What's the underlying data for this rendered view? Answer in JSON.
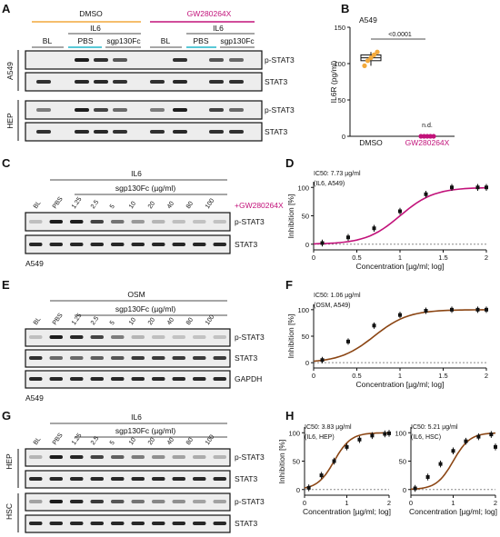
{
  "panels": {
    "A": {
      "letter": "A",
      "treat_dmso": "DMSO",
      "treat_gw": "GW280264X",
      "il6": "IL6",
      "lanes": [
        "BL",
        "PBS",
        "sgp130Fc",
        "BL",
        "PBS",
        "sgp130Fc"
      ],
      "cell_a549": "A549",
      "cell_hep": "HEP",
      "rows": [
        "p-STAT3",
        "STAT3",
        "p-STAT3",
        "STAT3"
      ]
    },
    "B": {
      "letter": "B",
      "cell": "A549",
      "pvalue": "<0.0001",
      "nd": "n.d.",
      "ylabel": "IL6R (pg/ml)",
      "yticks": [
        "0",
        "50",
        "100",
        "150"
      ],
      "xcats": [
        "DMSO",
        "GW280264X"
      ],
      "colors": {
        "dmso": "#f2a93b",
        "gw": "#c2127a"
      }
    },
    "C": {
      "letter": "C",
      "il6": "IL6",
      "sgp": "sgp130Fc (µg/ml)",
      "bl": "BL",
      "pbs": "PBS",
      "conc": [
        "1.25",
        "2.5",
        "5",
        "10",
        "20",
        "40",
        "80",
        "100"
      ],
      "gw": "+GW280264X",
      "rows": [
        "p-STAT3",
        "STAT3"
      ],
      "cell": "A549"
    },
    "E": {
      "letter": "E",
      "osm": "OSM",
      "sgp": "sgp130Fc (µg/ml)",
      "bl": "BL",
      "pbs": "PBS",
      "conc": [
        "1.25",
        "2.5",
        "5",
        "10",
        "20",
        "40",
        "80",
        "100"
      ],
      "rows": [
        "p-STAT3",
        "STAT3",
        "GAPDH"
      ],
      "cell": "A549"
    },
    "G": {
      "letter": "G",
      "il6": "IL6",
      "sgp": "sgp130Fc (µg/ml)",
      "bl": "BL",
      "pbs": "PBS",
      "conc": [
        "1.25",
        "2.5",
        "5",
        "10",
        "20",
        "40",
        "80",
        "100"
      ],
      "cell_hep": "HEP",
      "cell_hsc": "HSC",
      "rows": [
        "p-STAT3",
        "STAT3",
        "p-STAT3",
        "STAT3"
      ]
    },
    "D": {
      "letter": "D",
      "ic50": "IC50: 7.73 µg/ml",
      "cond": "(IL6, A549)"
    },
    "F": {
      "letter": "F",
      "ic50": "IC50: 1.06 µg/ml",
      "cond": "(OSM, A549)"
    },
    "H": {
      "letter": "H",
      "ic50_hep": "IC50: 3.83 µg/ml",
      "cond_hep": "(IL6, HEP)",
      "ic50_hsc": "IC50: 5.21 µg/ml",
      "cond_hsc": "(IL6, HSC)"
    }
  },
  "axis_text": {
    "ylabel": "Inhibition [%]",
    "xlabel": "Concentration [µg/ml; log]",
    "yticks": [
      "0",
      "50",
      "100"
    ],
    "xticks": [
      "0",
      "0.5",
      "1",
      "1.5",
      "2"
    ],
    "xticks_h": [
      "0",
      "1",
      "2"
    ]
  },
  "chart_data": [
    {
      "type": "scatter",
      "title": "A549",
      "ylabel": "IL6R (pg/ml)",
      "categories": [
        "DMSO",
        "GW280264X"
      ],
      "series": [
        {
          "name": "DMSO",
          "values": [
            97,
            104,
            108,
            112,
            116
          ]
        },
        {
          "name": "GW280264X",
          "values": [
            0,
            0,
            0,
            0,
            0
          ]
        }
      ],
      "ylim": [
        0,
        150
      ]
    },
    {
      "type": "line",
      "ylabel": "Inhibition [%]",
      "xlabel": "Concentration [µg/ml; log]",
      "x": [
        0.1,
        0.4,
        0.7,
        1.0,
        1.3,
        1.6,
        1.9,
        2.0
      ],
      "series": [
        {
          "values": [
            2,
            12,
            28,
            58,
            88,
            100,
            100,
            100
          ]
        }
      ],
      "xlim": [
        0,
        2
      ],
      "ylim": [
        -10,
        110
      ],
      "color": "#c2127a"
    },
    {
      "type": "line",
      "ylabel": "Inhibition [%]",
      "xlabel": "Concentration [µg/ml; log]",
      "x": [
        0.1,
        0.4,
        0.7,
        1.0,
        1.3,
        1.6,
        1.9,
        2.0
      ],
      "series": [
        {
          "values": [
            5,
            40,
            70,
            90,
            98,
            100,
            100,
            100
          ]
        }
      ],
      "xlim": [
        0,
        2
      ],
      "ylim": [
        -10,
        110
      ],
      "color": "#8b4513"
    },
    {
      "type": "line",
      "ylabel": "Inhibition [%]",
      "xlabel": "Concentration [µg/ml; log]",
      "x": [
        0.1,
        0.4,
        0.7,
        1.0,
        1.3,
        1.6,
        1.9,
        2.0
      ],
      "series": [
        {
          "values": [
            3,
            25,
            50,
            75,
            88,
            95,
            98,
            99
          ]
        }
      ],
      "xlim": [
        0,
        2
      ],
      "ylim": [
        -10,
        110
      ],
      "color": "#8b4513"
    },
    {
      "type": "line",
      "ylabel": "Inhibition [%]",
      "xlabel": "Concentration [µg/ml; log]",
      "x": [
        0.1,
        0.4,
        0.7,
        1.0,
        1.3,
        1.6,
        1.9,
        2.0
      ],
      "series": [
        {
          "values": [
            2,
            22,
            45,
            68,
            85,
            93,
            97,
            75
          ]
        }
      ],
      "xlim": [
        0,
        2
      ],
      "ylim": [
        -10,
        110
      ],
      "color": "#8b4513"
    }
  ]
}
